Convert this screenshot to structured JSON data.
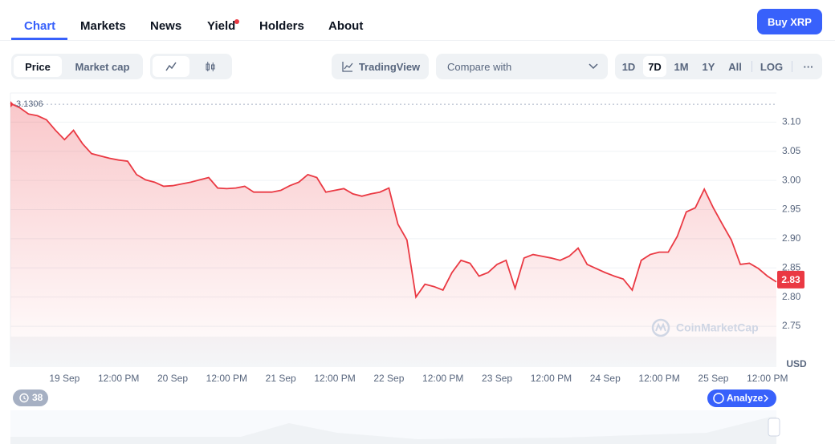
{
  "nav": {
    "tabs": [
      "Chart",
      "Markets",
      "News",
      "Yield",
      "Holders",
      "About"
    ],
    "buy_button": "Buy XRP"
  },
  "toolbar": {
    "view_toggle": [
      "Price",
      "Market cap"
    ],
    "tradingview": "TradingView",
    "compare": "Compare with",
    "ranges": [
      "1D",
      "7D",
      "1M",
      "1Y",
      "All"
    ],
    "log": "LOG"
  },
  "alerts_badge": "38",
  "analyze_button": "Analyze",
  "watermark": "CoinMarketCap",
  "chart_data": {
    "type": "line",
    "color": "#ea3943",
    "categories": [
      null,
      null,
      null,
      null,
      null,
      null,
      "19 Sep",
      null,
      null,
      null,
      null,
      null,
      "12:00 PM",
      null,
      null,
      null,
      null,
      null,
      "20 Sep",
      null,
      null,
      null,
      null,
      null,
      "12:00 PM",
      null,
      null,
      null,
      null,
      null,
      "21 Sep",
      null,
      null,
      null,
      null,
      null,
      "12:00 PM",
      null,
      null,
      null,
      null,
      null,
      "22 Sep",
      null,
      null,
      null,
      null,
      null,
      "12:00 PM",
      null,
      null,
      null,
      null,
      null,
      "23 Sep",
      null,
      null,
      null,
      null,
      null,
      "12:00 PM",
      null,
      null,
      null,
      null,
      null,
      "24 Sep",
      null,
      null,
      null,
      null,
      null,
      "12:00 PM",
      null,
      null,
      null,
      null,
      null,
      "25 Sep",
      null,
      null,
      null,
      null,
      null,
      "12:00 PM",
      null
    ],
    "values": [
      3.132,
      3.125,
      3.114,
      3.111,
      3.104,
      3.086,
      3.07,
      3.086,
      3.063,
      3.046,
      3.042,
      3.038,
      3.035,
      3.033,
      3.01,
      3.001,
      2.997,
      2.99,
      2.991,
      2.994,
      2.997,
      3.001,
      3.005,
      2.987,
      2.986,
      2.987,
      2.99,
      2.98,
      2.98,
      2.98,
      2.983,
      2.991,
      2.997,
      3.01,
      3.005,
      2.98,
      2.983,
      2.986,
      2.977,
      2.973,
      2.977,
      2.98,
      2.987,
      2.925,
      2.898,
      2.8,
      2.822,
      2.818,
      2.812,
      2.842,
      2.863,
      2.858,
      2.836,
      2.842,
      2.856,
      2.863,
      2.815,
      2.867,
      2.873,
      2.87,
      2.867,
      2.863,
      2.87,
      2.884,
      2.856,
      2.849,
      2.842,
      2.836,
      2.831,
      2.812,
      2.863,
      2.873,
      2.877,
      2.877,
      2.904,
      2.946,
      2.953,
      2.985,
      2.953,
      2.925,
      2.898,
      2.856,
      2.858,
      2.849,
      2.836,
      2.826
    ],
    "reference_value": 3.1306,
    "current_price": 2.83,
    "ylim": [
      2.68,
      3.15
    ],
    "yticks": [
      2.75,
      {
        "value": 2.8,
        "label": "2.80"
      },
      {
        "value": 2.85,
        "label": "2.85"
      },
      {
        "value": 2.9,
        "label": "2.90"
      },
      2.95,
      {
        "value": 3.0,
        "label": "3.00"
      },
      3.05,
      {
        "value": 3.1,
        "label": "3.10"
      }
    ],
    "y_axis_label": "USD",
    "grid": true
  }
}
